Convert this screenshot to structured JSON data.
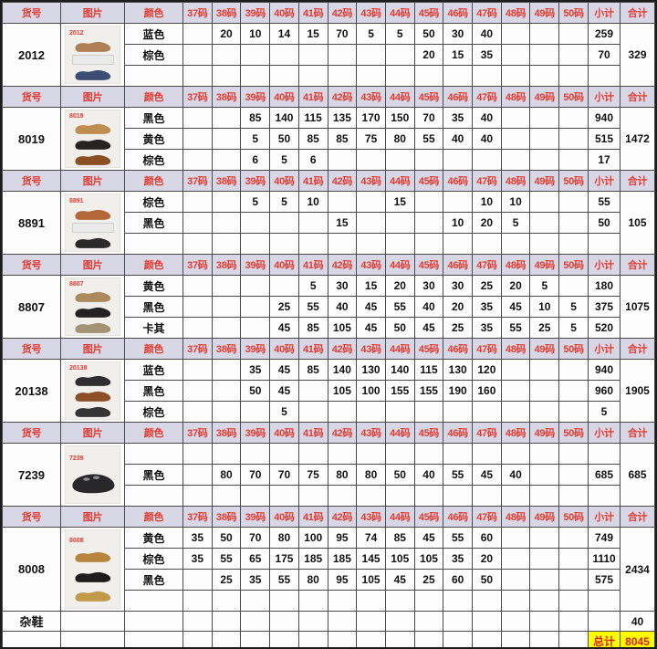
{
  "style": {
    "--hdr-bg": "#d7d7e5",
    "--hdr-fg": "#e23b31",
    "--hl-bg": "#ffff00",
    "--hl-fg": "#e01f1f"
  },
  "table": {
    "header": {
      "item": "货号",
      "image": "图片",
      "color": "颜色",
      "sizes": [
        "37码",
        "38码",
        "39码",
        "40码",
        "41码",
        "42码",
        "43码",
        "44码",
        "45码",
        "46码",
        "47码",
        "48码",
        "49码",
        "50码"
      ],
      "subtotal": "小计",
      "total": "合计"
    },
    "blocks": [
      {
        "item": "2012",
        "total": "329",
        "photo": {
          "label": "2012",
          "items": [
            {
              "kind": "shoe",
              "color": "#b08055"
            },
            {
              "kind": "box"
            },
            {
              "kind": "shoe",
              "color": "#3c4f72"
            }
          ]
        },
        "rows": [
          {
            "color": "蓝色",
            "sizes": [
              "",
              "20",
              "10",
              "14",
              "15",
              "70",
              "5",
              "5",
              "50",
              "30",
              "40",
              "",
              "",
              ""
            ],
            "subtotal": "259"
          },
          {
            "color": "棕色",
            "sizes": [
              "",
              "",
              "",
              "",
              "",
              "",
              "",
              "",
              "20",
              "15",
              "35",
              "",
              "",
              ""
            ],
            "subtotal": "70"
          },
          {
            "color": "",
            "sizes": [
              "",
              "",
              "",
              "",
              "",
              "",
              "",
              "",
              "",
              "",
              "",
              "",
              "",
              ""
            ],
            "subtotal": ""
          }
        ]
      },
      {
        "item": "8019",
        "total": "1472",
        "photo": {
          "label": "8019",
          "items": [
            {
              "kind": "shoe",
              "color": "#bf8d4e"
            },
            {
              "kind": "shoe",
              "color": "#26241f"
            },
            {
              "kind": "shoe",
              "color": "#8a4f22"
            }
          ]
        },
        "rows": [
          {
            "color": "黑色",
            "sizes": [
              "",
              "",
              "85",
              "140",
              "115",
              "135",
              "170",
              "150",
              "70",
              "35",
              "40",
              "",
              "",
              ""
            ],
            "subtotal": "940"
          },
          {
            "color": "黄色",
            "sizes": [
              "",
              "",
              "5",
              "50",
              "85",
              "85",
              "75",
              "80",
              "55",
              "40",
              "40",
              "",
              "",
              ""
            ],
            "subtotal": "515"
          },
          {
            "color": "棕色",
            "sizes": [
              "",
              "",
              "6",
              "5",
              "6",
              "",
              "",
              "",
              "",
              "",
              "",
              "",
              "",
              ""
            ],
            "subtotal": "17"
          }
        ]
      },
      {
        "item": "8891",
        "total": "105",
        "photo": {
          "label": "8891",
          "items": [
            {
              "kind": "shoe",
              "color": "#b4683a"
            },
            {
              "kind": "box"
            },
            {
              "kind": "shoe",
              "color": "#2b2b2b"
            }
          ]
        },
        "rows": [
          {
            "color": "棕色",
            "sizes": [
              "",
              "",
              "5",
              "5",
              "10",
              "",
              "",
              "15",
              "",
              "",
              "10",
              "10",
              "",
              ""
            ],
            "subtotal": "55"
          },
          {
            "color": "黑色",
            "sizes": [
              "",
              "",
              "",
              "",
              "",
              "15",
              "",
              "",
              "",
              "10",
              "20",
              "5",
              "",
              ""
            ],
            "subtotal": "50"
          },
          {
            "color": "",
            "sizes": [
              "",
              "",
              "",
              "",
              "",
              "",
              "",
              "",
              "",
              "",
              "",
              "",
              "",
              ""
            ],
            "subtotal": ""
          }
        ]
      },
      {
        "item": "8807",
        "total": "1075",
        "photo": {
          "label": "8807",
          "items": [
            {
              "kind": "shoe",
              "color": "#ad8a5e"
            },
            {
              "kind": "shoe",
              "color": "#232323"
            },
            {
              "kind": "shoe",
              "color": "#a39374"
            }
          ]
        },
        "rows": [
          {
            "color": "黄色",
            "sizes": [
              "",
              "",
              "",
              "",
              "5",
              "30",
              "15",
              "20",
              "30",
              "30",
              "25",
              "20",
              "5",
              ""
            ],
            "subtotal": "180"
          },
          {
            "color": "黑色",
            "sizes": [
              "",
              "",
              "",
              "25",
              "55",
              "40",
              "45",
              "55",
              "40",
              "20",
              "35",
              "45",
              "10",
              "5"
            ],
            "subtotal": "375"
          },
          {
            "color": "卡其",
            "sizes": [
              "",
              "",
              "",
              "45",
              "85",
              "105",
              "45",
              "50",
              "45",
              "25",
              "35",
              "55",
              "25",
              "5"
            ],
            "subtotal": "520"
          }
        ]
      },
      {
        "item": "20138",
        "total": "1905",
        "photo": {
          "label": "20138",
          "items": [
            {
              "kind": "shoe",
              "color": "#2e2e30"
            },
            {
              "kind": "shoe",
              "color": "#8d4e28"
            },
            {
              "kind": "shoe",
              "color": "#353537"
            }
          ]
        },
        "rows": [
          {
            "color": "蓝色",
            "sizes": [
              "",
              "",
              "35",
              "45",
              "85",
              "140",
              "130",
              "140",
              "115",
              "130",
              "120",
              "",
              "",
              ""
            ],
            "subtotal": "940"
          },
          {
            "color": "黑色",
            "sizes": [
              "",
              "",
              "50",
              "45",
              "",
              "105",
              "100",
              "155",
              "155",
              "190",
              "160",
              "",
              "",
              ""
            ],
            "subtotal": "960"
          },
          {
            "color": "棕色",
            "sizes": [
              "",
              "",
              "",
              "5",
              "",
              "",
              "",
              "",
              "",
              "",
              "",
              "",
              "",
              ""
            ],
            "subtotal": "5"
          }
        ]
      },
      {
        "item": "7239",
        "total": "685",
        "photo": {
          "label": "7239",
          "items": [
            {
              "kind": "sandal",
              "color": "#28282a"
            }
          ]
        },
        "rows": [
          {
            "color": "",
            "sizes": [
              "",
              "",
              "",
              "",
              "",
              "",
              "",
              "",
              "",
              "",
              "",
              "",
              "",
              ""
            ],
            "subtotal": ""
          },
          {
            "color": "黑色",
            "sizes": [
              "",
              "80",
              "70",
              "70",
              "75",
              "80",
              "80",
              "50",
              "40",
              "55",
              "45",
              "40",
              "",
              ""
            ],
            "subtotal": "685"
          },
          {
            "color": "",
            "sizes": [
              "",
              "",
              "",
              "",
              "",
              "",
              "",
              "",
              "",
              "",
              "",
              "",
              "",
              ""
            ],
            "subtotal": ""
          }
        ]
      },
      {
        "item": "8008",
        "total": "2434",
        "photo": {
          "label": "8008",
          "items": [
            {
              "kind": "shoe",
              "color": "#b8853f"
            },
            {
              "kind": "shoe",
              "color": "#1f1d1b"
            },
            {
              "kind": "shoe",
              "color": "#c29a4a"
            }
          ]
        },
        "rows": [
          {
            "color": "黄色",
            "sizes": [
              "35",
              "50",
              "70",
              "80",
              "100",
              "95",
              "74",
              "85",
              "45",
              "55",
              "60",
              "",
              "",
              ""
            ],
            "subtotal": "749"
          },
          {
            "color": "棕色",
            "sizes": [
              "35",
              "55",
              "65",
              "175",
              "185",
              "185",
              "145",
              "105",
              "105",
              "35",
              "20",
              "",
              "",
              ""
            ],
            "subtotal": "1110"
          },
          {
            "color": "黑色",
            "sizes": [
              "",
              "25",
              "35",
              "55",
              "80",
              "95",
              "105",
              "45",
              "25",
              "60",
              "50",
              "",
              "",
              ""
            ],
            "subtotal": "575"
          },
          {
            "color": "",
            "sizes": [
              "",
              "",
              "",
              "",
              "",
              "",
              "",
              "",
              "",
              "",
              "",
              "",
              "",
              ""
            ],
            "subtotal": ""
          }
        ]
      }
    ],
    "footer": {
      "misc_label": "杂鞋",
      "misc_total": "40",
      "grand_label": "总计",
      "grand_total": "8045"
    }
  }
}
